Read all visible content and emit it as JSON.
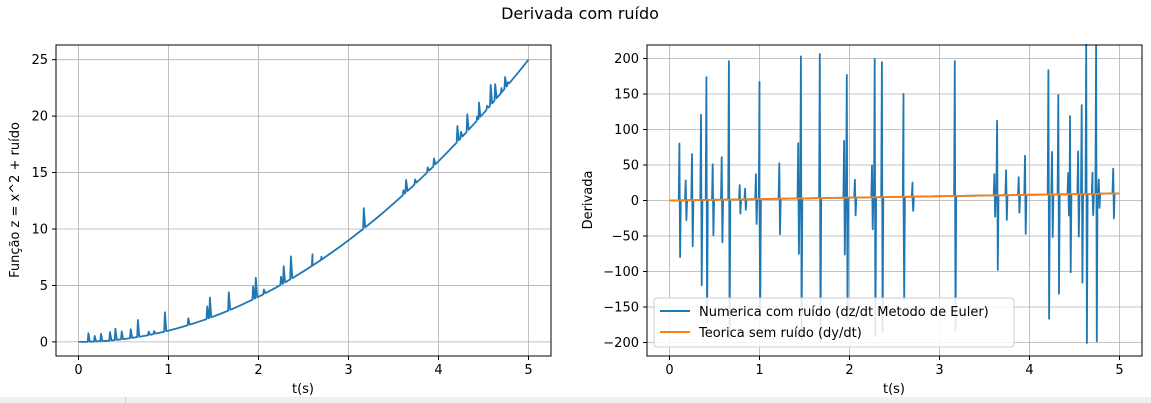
{
  "figure": {
    "suptitle": "Derivada com ruído",
    "colors": {
      "blue": "#1f77b4",
      "orange": "#ff7f0e",
      "grid": "#b0b0b0",
      "axes": "#000000"
    }
  },
  "chart_data": [
    {
      "type": "line",
      "title": "",
      "xlabel": "t(s)",
      "ylabel": "Função z = x^2 + ruído",
      "xlim": [
        -0.25,
        5.25
      ],
      "ylim": [
        -1.25,
        26.3
      ],
      "xticks": [
        0,
        1,
        2,
        3,
        4,
        5
      ],
      "xtick_labels": [
        "0",
        "1",
        "2",
        "3",
        "4",
        "5"
      ],
      "yticks": [
        0,
        5,
        10,
        15,
        20,
        25
      ],
      "ytick_labels": [
        "0",
        "5",
        "10",
        "15",
        "20",
        "25"
      ],
      "grid": true,
      "series": [
        {
          "color": "#1f77b4",
          "base": "t^2",
          "t_range": [
            0,
            5
          ],
          "spikes": [
            [
              0.11,
              0.75
            ],
            [
              0.18,
              0.5
            ],
            [
              0.25,
              0.65
            ],
            [
              0.35,
              0.75
            ],
            [
              0.41,
              1.0
            ],
            [
              0.48,
              0.7
            ],
            [
              0.58,
              0.8
            ],
            [
              0.66,
              1.5
            ],
            [
              0.78,
              0.3
            ],
            [
              0.84,
              0.25
            ],
            [
              0.96,
              1.7
            ],
            [
              1.22,
              0.6
            ],
            [
              1.43,
              1.1
            ],
            [
              1.46,
              1.8
            ],
            [
              1.67,
              1.6
            ],
            [
              1.94,
              1.15
            ],
            [
              1.97,
              1.8
            ],
            [
              2.06,
              0.4
            ],
            [
              2.25,
              0.7
            ],
            [
              2.28,
              1.5
            ],
            [
              2.36,
              2.0
            ],
            [
              2.6,
              1.0
            ],
            [
              2.7,
              0.25
            ],
            [
              3.17,
              1.8
            ],
            [
              3.61,
              0.4
            ],
            [
              3.64,
              1.1
            ],
            [
              3.74,
              0.4
            ],
            [
              3.88,
              0.4
            ],
            [
              3.95,
              0.65
            ],
            [
              4.21,
              1.4
            ],
            [
              4.25,
              0.55
            ],
            [
              4.32,
              1.5
            ],
            [
              4.43,
              0.35
            ],
            [
              4.45,
              1.4
            ],
            [
              4.54,
              0.3
            ],
            [
              4.58,
              1.8
            ],
            [
              4.63,
              1.4
            ],
            [
              4.7,
              0.4
            ],
            [
              4.74,
              1.0
            ],
            [
              4.77,
              0.25
            ]
          ]
        }
      ]
    },
    {
      "type": "line",
      "title": "",
      "xlabel": "t(s)",
      "ylabel": "Derivada",
      "xlim": [
        -0.25,
        5.25
      ],
      "ylim": [
        -219,
        219
      ],
      "xticks": [
        0,
        1,
        2,
        3,
        4,
        5
      ],
      "xtick_labels": [
        "0",
        "1",
        "2",
        "3",
        "4",
        "5"
      ],
      "yticks": [
        -200,
        -150,
        -100,
        -50,
        0,
        50,
        100,
        150,
        200
      ],
      "ytick_labels": [
        "−200",
        "−150",
        "−100",
        "−50",
        "0",
        "50",
        "100",
        "150",
        "200"
      ],
      "grid": true,
      "legend_position": "lower-center",
      "series": [
        {
          "name": "Numerica com ruído (dz/dt Metodo de Euler)",
          "color": "#1f77b4",
          "base": "2t",
          "t_range": [
            0,
            5
          ],
          "spikes": [
            [
              0.11,
              80
            ],
            [
              0.18,
              28
            ],
            [
              0.25,
              65
            ],
            [
              0.35,
              120
            ],
            [
              0.41,
              173
            ],
            [
              0.48,
              50
            ],
            [
              0.58,
              60
            ],
            [
              0.66,
              195
            ],
            [
              0.78,
              20
            ],
            [
              0.84,
              15
            ],
            [
              0.96,
              35
            ],
            [
              1.0,
              165
            ],
            [
              1.22,
              50
            ],
            [
              1.43,
              78
            ],
            [
              1.46,
              200
            ],
            [
              1.67,
              203
            ],
            [
              1.94,
              80
            ],
            [
              1.97,
              173
            ],
            [
              2.06,
              25
            ],
            [
              2.25,
              45
            ],
            [
              2.28,
              195
            ],
            [
              2.36,
              190
            ],
            [
              2.6,
              145
            ],
            [
              2.7,
              20
            ],
            [
              3.17,
              190
            ],
            [
              3.61,
              30
            ],
            [
              3.64,
              105
            ],
            [
              3.74,
              35
            ],
            [
              3.88,
              25
            ],
            [
              3.95,
              55
            ],
            [
              4.21,
              175
            ],
            [
              4.25,
              60
            ],
            [
              4.32,
              140
            ],
            [
              4.43,
              30
            ],
            [
              4.45,
              110
            ],
            [
              4.54,
              60
            ],
            [
              4.58,
              125
            ],
            [
              4.63,
              210
            ],
            [
              4.7,
              30
            ],
            [
              4.74,
              208
            ],
            [
              4.77,
              20
            ],
            [
              4.93,
              35
            ]
          ]
        },
        {
          "name": "Teorica sem ruído (dy/dt)",
          "color": "#ff7f0e",
          "function": "2t",
          "t_range": [
            0,
            5
          ]
        }
      ]
    }
  ]
}
